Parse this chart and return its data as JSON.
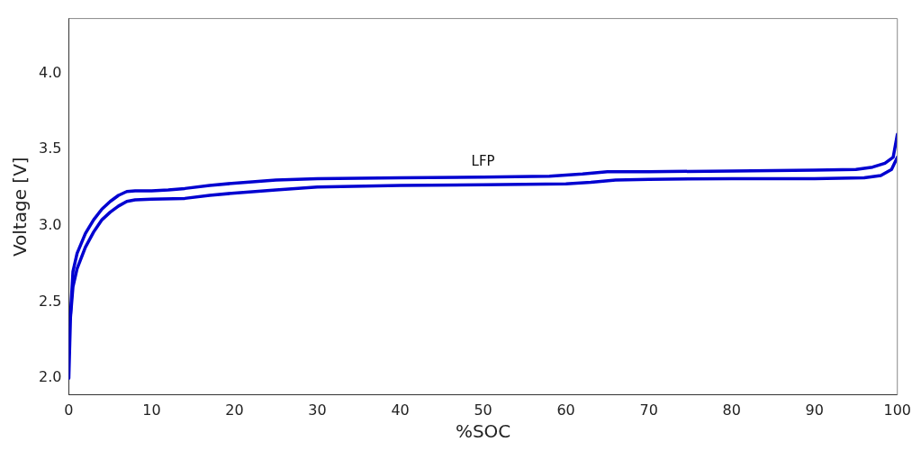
{
  "chart_data": {
    "type": "line",
    "xlabel": "%SOC",
    "ylabel": "Voltage [V]",
    "xlim": [
      0,
      100
    ],
    "ylim": [
      1.89,
      4.36
    ],
    "xticks": [
      0,
      10,
      20,
      30,
      40,
      50,
      60,
      70,
      80,
      90,
      100
    ],
    "yticks": [
      {
        "value": 2,
        "label": "2.0"
      },
      2.5,
      {
        "value": 3,
        "label": "3.0"
      },
      3.5,
      {
        "value": 4,
        "label": "4.0"
      }
    ],
    "grid": false,
    "legend": false,
    "marker": "none",
    "line_style": "solid",
    "annotations": [
      "LFP"
    ],
    "series": [
      {
        "color": "#0000d0",
        "x": [
          0.2,
          0.5,
          1,
          2,
          3,
          4,
          5,
          6,
          7,
          8,
          10,
          12,
          14,
          17,
          20,
          25,
          30,
          40,
          50,
          58,
          62,
          65,
          70,
          80,
          90,
          95,
          97,
          98.5,
          99.5,
          100
        ],
        "values": [
          2.42,
          2.7,
          2.82,
          2.95,
          3.04,
          3.11,
          3.16,
          3.2,
          3.225,
          3.23,
          3.23,
          3.235,
          3.245,
          3.265,
          3.28,
          3.3,
          3.31,
          3.315,
          3.32,
          3.325,
          3.34,
          3.355,
          3.355,
          3.36,
          3.365,
          3.37,
          3.385,
          3.41,
          3.45,
          3.6
        ]
      },
      {
        "color": "#0000d0",
        "x": [
          0,
          0.2,
          0.5,
          1,
          2,
          3,
          4,
          5,
          6,
          7,
          8,
          10,
          14,
          17,
          20,
          25,
          30,
          40,
          50,
          60,
          63,
          66,
          70,
          80,
          90,
          96,
          98,
          99.3,
          100
        ],
        "values": [
          2.0,
          2.4,
          2.6,
          2.72,
          2.86,
          2.96,
          3.04,
          3.09,
          3.13,
          3.16,
          3.17,
          3.175,
          3.18,
          3.2,
          3.215,
          3.235,
          3.255,
          3.265,
          3.27,
          3.275,
          3.285,
          3.3,
          3.305,
          3.31,
          3.31,
          3.315,
          3.33,
          3.37,
          3.45
        ]
      }
    ]
  }
}
